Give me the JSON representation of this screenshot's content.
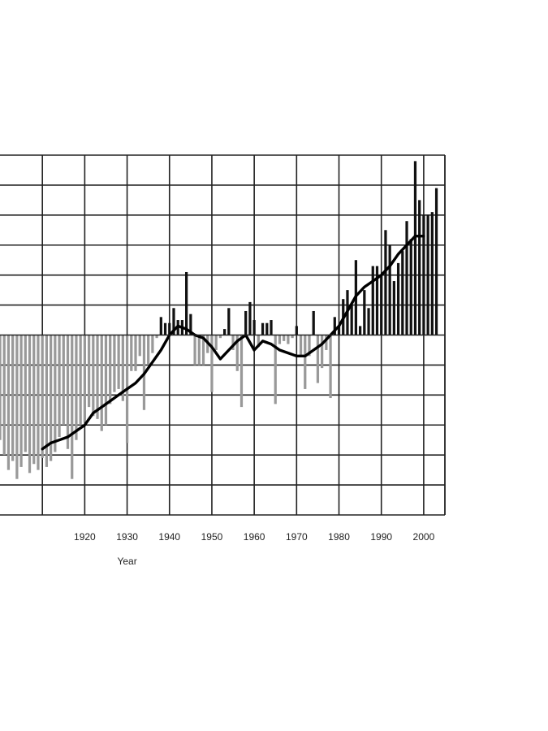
{
  "chart_data": {
    "type": "bar",
    "xlabel": "Year",
    "ylabel": "",
    "xlim": [
      1900,
      2005
    ],
    "ylim": [
      -6,
      6
    ],
    "grid": true,
    "x_ticks": [
      1920,
      1930,
      1940,
      1950,
      1960,
      1970,
      1980,
      1990,
      2000
    ],
    "x_tick_labels": [
      "1920",
      "1930",
      "1940",
      "1950",
      "1960",
      "1970",
      "1980",
      "1990",
      "2000"
    ],
    "baseline": 0,
    "colors": {
      "positive": "#111111",
      "negative": "#999999",
      "trend": "#000000",
      "grid": "#222222"
    },
    "series": [
      {
        "type": "bar",
        "x": [
          1900,
          1901,
          1902,
          1903,
          1904,
          1905,
          1906,
          1907,
          1908,
          1909,
          1910,
          1911,
          1912,
          1913,
          1914,
          1915,
          1916,
          1917,
          1918,
          1919,
          1920,
          1921,
          1922,
          1923,
          1924,
          1925,
          1926,
          1927,
          1928,
          1929,
          1930,
          1931,
          1932,
          1933,
          1934,
          1935,
          1936,
          1937,
          1938,
          1939,
          1940,
          1941,
          1942,
          1943,
          1944,
          1945,
          1946,
          1947,
          1948,
          1949,
          1950,
          1951,
          1952,
          1953,
          1954,
          1955,
          1956,
          1957,
          1958,
          1959,
          1960,
          1961,
          1962,
          1963,
          1964,
          1965,
          1966,
          1967,
          1968,
          1969,
          1970,
          1971,
          1972,
          1973,
          1974,
          1975,
          1976,
          1977,
          1978,
          1979,
          1980,
          1981,
          1982,
          1983,
          1984,
          1985,
          1986,
          1987,
          1988,
          1989,
          1990,
          1991,
          1992,
          1993,
          1994,
          1995,
          1996,
          1997,
          1998,
          1999,
          2000,
          2001,
          2002,
          2003
        ],
        "values": [
          -3.5,
          -4.0,
          -4.5,
          -4.2,
          -4.8,
          -4.4,
          -3.9,
          -4.6,
          -4.3,
          -4.5,
          -4.1,
          -4.4,
          -4.2,
          -3.9,
          -3.4,
          -3.0,
          -3.8,
          -4.8,
          -3.5,
          -3.0,
          -2.9,
          -2.4,
          -2.7,
          -2.8,
          -3.2,
          -3.0,
          -2.3,
          -1.9,
          -1.8,
          -2.2,
          -3.6,
          -1.2,
          -1.2,
          -0.7,
          -2.5,
          -1.0,
          -0.6,
          -0.1,
          0.6,
          0.4,
          0.4,
          0.9,
          0.5,
          0.5,
          2.1,
          0.7,
          -1.0,
          -1.0,
          -1.0,
          -0.6,
          -1.9,
          -0.5,
          -0.1,
          0.2,
          0.9,
          -0.5,
          -1.2,
          -2.4,
          0.8,
          1.1,
          0.5,
          -0.4,
          0.4,
          0.4,
          0.5,
          -2.3,
          -0.3,
          -0.2,
          -0.3,
          -0.1,
          0.3,
          -0.7,
          -1.8,
          -0.7,
          0.8,
          -1.6,
          -1.1,
          -0.5,
          -2.1,
          0.6,
          0.3,
          1.2,
          1.5,
          1.0,
          2.5,
          0.3,
          1.5,
          0.9,
          2.3,
          2.3,
          2.0,
          3.5,
          3.0,
          1.8,
          2.4,
          2.8,
          3.8,
          3.2,
          5.8,
          4.5,
          4.0,
          4.0,
          4.1,
          4.9
        ]
      },
      {
        "type": "line",
        "x": [
          1910,
          1912,
          1914,
          1916,
          1918,
          1920,
          1922,
          1924,
          1926,
          1928,
          1930,
          1932,
          1934,
          1936,
          1938,
          1940,
          1942,
          1944,
          1946,
          1948,
          1950,
          1952,
          1954,
          1956,
          1958,
          1960,
          1962,
          1964,
          1966,
          1968,
          1970,
          1972,
          1974,
          1976,
          1978,
          1980,
          1982,
          1984,
          1986,
          1988,
          1990,
          1992,
          1994,
          1996,
          1998,
          2000
        ],
        "values": [
          -3.8,
          -3.6,
          -3.5,
          -3.4,
          -3.2,
          -3.0,
          -2.6,
          -2.4,
          -2.2,
          -2.0,
          -1.8,
          -1.6,
          -1.3,
          -0.9,
          -0.5,
          0.0,
          0.3,
          0.2,
          0.0,
          -0.1,
          -0.4,
          -0.8,
          -0.5,
          -0.2,
          0.0,
          -0.5,
          -0.2,
          -0.3,
          -0.5,
          -0.6,
          -0.7,
          -0.7,
          -0.5,
          -0.3,
          0.0,
          0.3,
          0.8,
          1.3,
          1.6,
          1.8,
          2.0,
          2.3,
          2.7,
          3.0,
          3.3,
          3.3
        ]
      }
    ]
  }
}
